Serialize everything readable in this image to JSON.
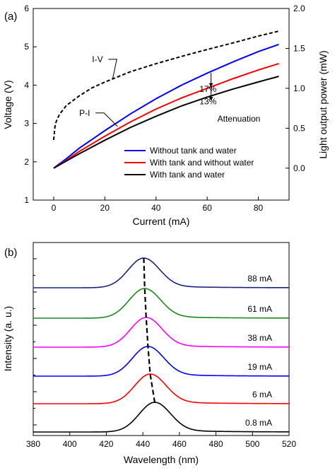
{
  "chart_data": [
    {
      "panel_label": "(a)",
      "type": "line",
      "xlabel": "Current (mA)",
      "ylabel_left": "Voltage (V)",
      "ylabel_right": "Light output power (mW)",
      "xlim": [
        -8,
        92
      ],
      "ylim_left": [
        1,
        6
      ],
      "ylim_right": [
        -0.4,
        2.0
      ],
      "x_ticks": [
        0,
        20,
        40,
        60,
        80
      ],
      "y_left_ticks": [
        1,
        2,
        3,
        4,
        5,
        6
      ],
      "y_right_ticks": [
        0.0,
        0.5,
        1.0,
        1.5,
        2.0
      ],
      "y_right_tick_labels": [
        "0.0",
        "0.5",
        "1.0",
        "1.5",
        "2.0"
      ],
      "grid": false,
      "legend": {
        "placement": "lower-right",
        "entries": [
          "Without tank and water",
          "With tank and without water",
          "With tank and water"
        ]
      },
      "series": [
        {
          "name": "I-V",
          "axis": "left",
          "color": "#000000",
          "dash": true,
          "x": [
            0,
            0.5,
            1,
            2,
            3,
            5,
            8,
            10,
            15,
            20,
            30,
            40,
            50,
            60,
            70,
            80,
            88
          ],
          "y": [
            2.57,
            2.92,
            3.05,
            3.2,
            3.3,
            3.47,
            3.62,
            3.72,
            3.93,
            4.08,
            4.35,
            4.56,
            4.75,
            4.93,
            5.1,
            5.28,
            5.41
          ]
        },
        {
          "name": "Without tank and water",
          "axis": "right",
          "color": "#0000ff",
          "dash": false,
          "x": [
            0,
            5,
            10,
            20,
            30,
            40,
            50,
            60,
            70,
            80,
            88
          ],
          "y": [
            0.0,
            0.12,
            0.25,
            0.47,
            0.68,
            0.87,
            1.04,
            1.19,
            1.33,
            1.46,
            1.55
          ]
        },
        {
          "name": "With tank and without water",
          "axis": "right",
          "color": "#ff0000",
          "dash": false,
          "x": [
            0,
            5,
            10,
            20,
            30,
            40,
            50,
            60,
            70,
            80,
            88
          ],
          "y": [
            0.0,
            0.1,
            0.21,
            0.4,
            0.58,
            0.74,
            0.88,
            1.0,
            1.12,
            1.23,
            1.31
          ]
        },
        {
          "name": "With tank and water",
          "axis": "right",
          "color": "#000000",
          "dash": false,
          "x": [
            0,
            5,
            10,
            20,
            30,
            40,
            50,
            60,
            70,
            80,
            88
          ],
          "y": [
            0.0,
            0.09,
            0.18,
            0.35,
            0.51,
            0.65,
            0.78,
            0.89,
            0.99,
            1.08,
            1.15
          ]
        }
      ],
      "annotations": [
        {
          "text": "I-V",
          "x": 15,
          "y": 4.6,
          "axis": "left",
          "pointer_to": [
            23,
            4.15
          ]
        },
        {
          "text": "P-I",
          "x": 10,
          "y": 3.2,
          "axis": "left",
          "pointer_to": [
            25,
            2.92
          ]
        },
        {
          "text": "17%",
          "x": 57,
          "y": 3.82,
          "axis": "left"
        },
        {
          "text": "13%",
          "x": 57,
          "y": 3.5,
          "axis": "left"
        },
        {
          "text": "Attenuation",
          "x": 64,
          "y": 3.05,
          "axis": "left"
        }
      ],
      "arrows": [
        {
          "x": 61.5,
          "from": 4.32,
          "to": 3.96,
          "axis": "left"
        },
        {
          "x": 61.5,
          "from": 3.96,
          "to": 3.6,
          "axis": "left"
        }
      ]
    },
    {
      "panel_label": "(b)",
      "type": "line",
      "xlabel": "Wavelength (nm)",
      "ylabel": "Intensity (a. u.)",
      "xlim": [
        380,
        520
      ],
      "x_ticks": [
        380,
        400,
        420,
        440,
        460,
        480,
        500,
        520
      ],
      "y_tick_labels": false,
      "grid": false,
      "peak_trend_line": {
        "dash": true,
        "color": "#000000"
      },
      "series": [
        {
          "name": "88 mA",
          "color": "#1a237e",
          "baseline": 1.0,
          "peak_nm": 440.5,
          "fwhm": 20,
          "amplitude": 1.0
        },
        {
          "name": "61 mA",
          "color": "#1b8a1b",
          "baseline": 0.0,
          "peak_nm": 441.0,
          "fwhm": 20,
          "amplitude": 1.0
        },
        {
          "name": "38 mA",
          "color": "#ff00ff",
          "baseline": 0.0,
          "peak_nm": 441.8,
          "fwhm": 20,
          "amplitude": 1.0
        },
        {
          "name": "19 mA",
          "color": "#0000ff",
          "baseline": 0.0,
          "peak_nm": 442.8,
          "fwhm": 20,
          "amplitude": 1.0
        },
        {
          "name": "6 mA",
          "color": "#ff0000",
          "baseline": 0.0,
          "peak_nm": 444.0,
          "fwhm": 20,
          "amplitude": 1.0
        },
        {
          "name": "0.8 mA",
          "color": "#000000",
          "baseline": 0.0,
          "peak_nm": 446.5,
          "fwhm": 20,
          "amplitude": 1.0
        }
      ]
    }
  ]
}
